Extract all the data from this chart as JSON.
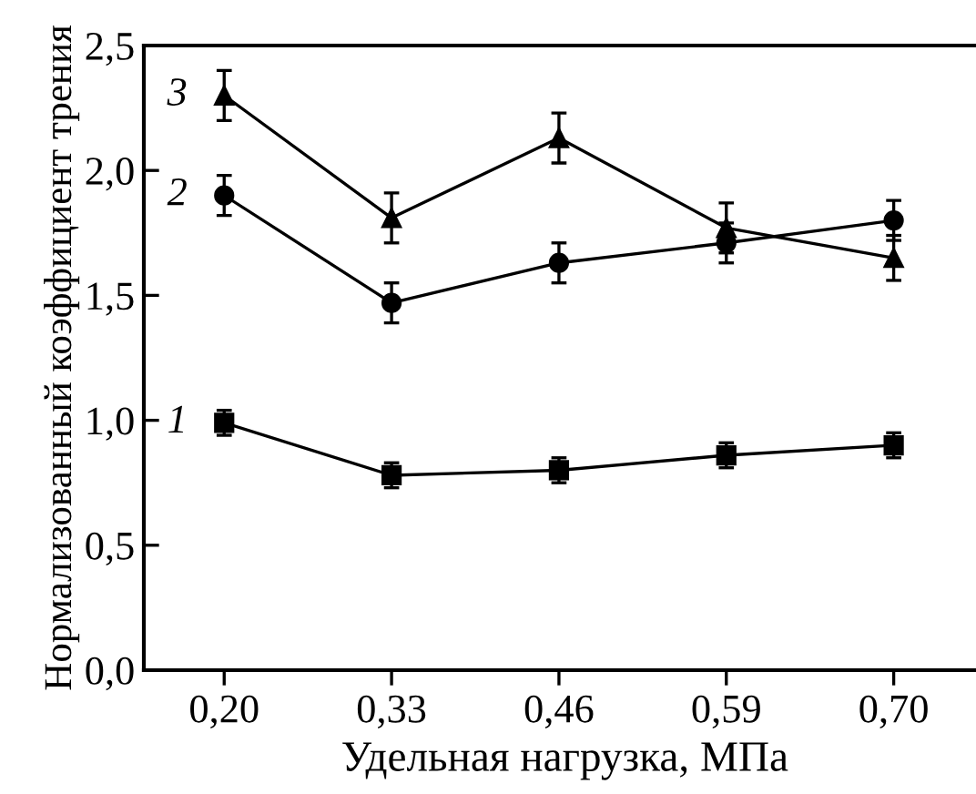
{
  "chart_data": {
    "type": "line",
    "xlabel": "Удельная нагрузка, МПа",
    "ylabel": "Нормализованный коэффициент трения",
    "categories": [
      "0,20",
      "0,33",
      "0,46",
      "0,59",
      "0,70"
    ],
    "ylim": [
      0,
      2.5
    ],
    "yticks": [
      {
        "value": 0,
        "label": "0,0"
      },
      {
        "value": 0.5,
        "label": "0,5"
      },
      {
        "value": 1.0,
        "label": "1,0"
      },
      {
        "value": 1.5,
        "label": "1,5"
      },
      {
        "value": 2.0,
        "label": "2,0"
      },
      {
        "value": 2.5,
        "label": "2,5"
      }
    ],
    "grid": false,
    "legend": false,
    "line_style": "solid",
    "series": [
      {
        "name": "1",
        "color": "#000000",
        "marker": "square",
        "values": [
          0.99,
          0.78,
          0.8,
          0.86,
          0.9
        ],
        "errors": [
          0.05,
          0.05,
          0.05,
          0.05,
          0.05
        ]
      },
      {
        "name": "2",
        "color": "#000000",
        "marker": "circle",
        "values": [
          1.9,
          1.47,
          1.63,
          1.71,
          1.8
        ],
        "errors": [
          0.08,
          0.08,
          0.08,
          0.08,
          0.08
        ]
      },
      {
        "name": "3",
        "color": "#000000",
        "marker": "triangle",
        "values": [
          2.3,
          1.81,
          2.13,
          1.77,
          1.65
        ],
        "errors": [
          0.1,
          0.1,
          0.1,
          0.1,
          0.09
        ]
      }
    ]
  }
}
